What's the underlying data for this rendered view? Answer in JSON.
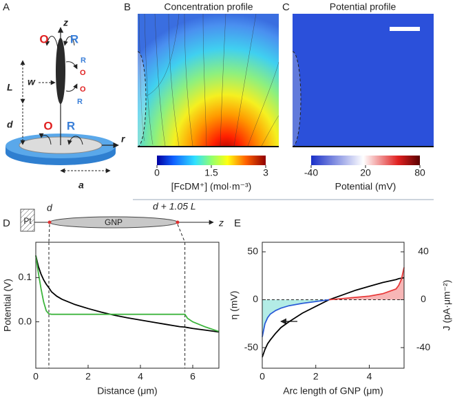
{
  "panel_labels": [
    "A",
    "B",
    "C",
    "D",
    "E"
  ],
  "diagram": {
    "z": "z",
    "r": "r",
    "O": "O",
    "R": "R",
    "L": "L",
    "w": "w",
    "d": "d",
    "a": "a"
  },
  "heatmaps": [
    {
      "title": "Concentration profile",
      "colorbar_label": "[FcDM⁺] (mol·m⁻³)",
      "clim": [
        0,
        3
      ],
      "cticks": [
        0,
        1.5,
        3
      ]
    },
    {
      "title": "Potential profile",
      "colorbar_label": "Potential (mV)",
      "clim": [
        -40,
        80
      ],
      "cticks": [
        -40,
        20,
        80
      ]
    }
  ],
  "schematic": {
    "electrode": "Pt",
    "particle": "GNP",
    "start": "d",
    "end": "d + 1.05 L",
    "axis": "z"
  },
  "chart_data": [
    {
      "type": "line",
      "xlabel": "Distance (μm)",
      "ylabel": "Potential (V)",
      "x": [
        0,
        0.1,
        0.2,
        0.3,
        0.4,
        0.5,
        0.6,
        0.8,
        1,
        1.5,
        2,
        2.5,
        3,
        3.5,
        4,
        4.5,
        5,
        5.5,
        5.7,
        5.8,
        6,
        6.5,
        7
      ],
      "series": [
        {
          "color": "#000000",
          "values": [
            0.15,
            0.125,
            0.108,
            0.095,
            0.085,
            0.077,
            0.068,
            0.058,
            0.051,
            0.039,
            0.03,
            0.022,
            0.015,
            0.009,
            0.004,
            -0.001,
            -0.006,
            -0.011,
            -0.012,
            -0.013,
            -0.015,
            -0.019,
            -0.023
          ]
        },
        {
          "color": "#3cb43c",
          "values": [
            0.15,
            0.11,
            0.075,
            0.045,
            0.025,
            0.018,
            0.017,
            0.017,
            0.017,
            0.017,
            0.017,
            0.017,
            0.017,
            0.017,
            0.017,
            0.017,
            0.017,
            0.017,
            0.017,
            0.008,
            0.0,
            -0.012,
            -0.022
          ]
        }
      ],
      "xlim": [
        0,
        7
      ],
      "xticks": [
        0,
        2,
        4,
        6
      ],
      "ylim": [
        -0.105,
        0.18
      ],
      "yticks": [
        {
          "value": 0,
          "label": "0.0"
        },
        {
          "value": 0.1,
          "label": "0.1"
        }
      ],
      "vlines": [
        0.5,
        5.7
      ]
    },
    {
      "type": "line",
      "xlabel": "Arc length of GNP (μm)",
      "ylabel": "η (mV)",
      "y2label": "J (pA·μm⁻²)",
      "x": [
        0,
        0.1,
        0.2,
        0.3,
        0.5,
        0.7,
        1,
        1.5,
        2,
        2.5,
        3,
        3.5,
        4,
        4.5,
        5,
        5.1,
        5.2,
        5.3
      ],
      "series": [
        {
          "color": "#000000",
          "values": [
            -60,
            -52,
            -46,
            -42,
            -35,
            -29,
            -23,
            -14,
            -7,
            0,
            5,
            10,
            14,
            18,
            21,
            22,
            22.5,
            23
          ]
        },
        {
          "color": "#2a5bd7",
          "axis": "y2",
          "area": "#b3ece6",
          "values": [
            -31,
            -20,
            -15,
            -12,
            -9,
            -7,
            -5,
            -3,
            -1.5,
            0,
            null,
            null,
            null,
            null,
            null,
            null,
            null,
            null
          ]
        },
        {
          "color": "#e83a3a",
          "axis": "y2",
          "area": "#f7b6b6",
          "values": [
            null,
            null,
            null,
            null,
            null,
            null,
            null,
            null,
            null,
            0,
            1,
            2,
            3,
            5,
            9,
            12,
            17,
            27
          ]
        }
      ],
      "xlim": [
        0,
        5.3
      ],
      "xticks": [
        0,
        2,
        4
      ],
      "ylim": [
        -71.5,
        60
      ],
      "yticks": [
        -50,
        0,
        50
      ],
      "y2lim": [
        -57.2,
        48
      ],
      "y2ticks": [
        -40,
        0,
        40
      ],
      "zero_line": true
    }
  ]
}
